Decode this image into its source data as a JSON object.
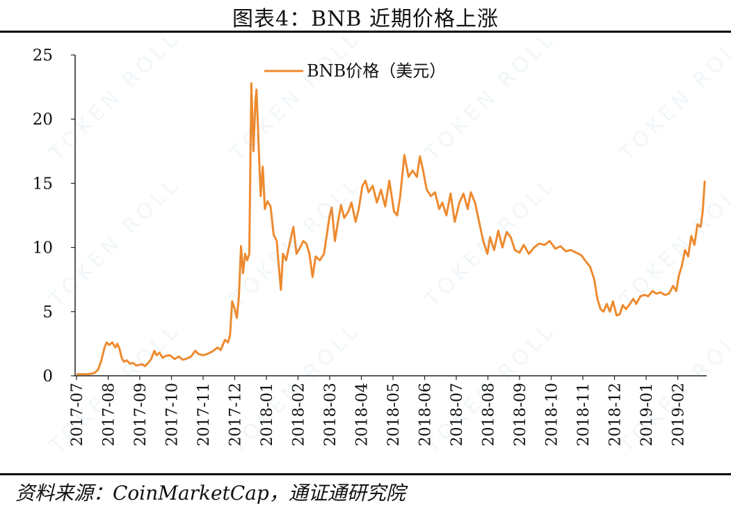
{
  "header": {
    "title": "图表4：BNB 近期价格上涨"
  },
  "footer": {
    "source": "资料来源：CoinMarketCap，通证通研究院"
  },
  "watermark": {
    "text": "TOKEN ROLL"
  },
  "chart_data": {
    "type": "line",
    "title": "",
    "xlabel": "",
    "ylabel": "",
    "ylim": [
      0,
      25
    ],
    "yticks": [
      0,
      5,
      10,
      15,
      20,
      25
    ],
    "categories": [
      "2017-07",
      "2017-08",
      "2017-09",
      "2017-10",
      "2017-11",
      "2017-12",
      "2018-01",
      "2018-02",
      "2018-03",
      "2018-04",
      "2018-05",
      "2018-06",
      "2018-07",
      "2018-08",
      "2018-09",
      "2018-10",
      "2018-11",
      "2018-12",
      "2019-01",
      "2019-02"
    ],
    "grid": false,
    "legend_position": "top-center",
    "series": [
      {
        "name": "BNB价格（美元）",
        "color": "#ED8A2F",
        "points": [
          [
            "2017-07-01",
            0.12
          ],
          [
            "2017-07-07",
            0.12
          ],
          [
            "2017-07-12",
            0.13
          ],
          [
            "2017-07-18",
            0.2
          ],
          [
            "2017-07-22",
            0.5
          ],
          [
            "2017-07-25",
            1.2
          ],
          [
            "2017-07-28",
            2.2
          ],
          [
            "2017-07-30",
            2.6
          ],
          [
            "2017-08-02",
            2.4
          ],
          [
            "2017-08-05",
            2.6
          ],
          [
            "2017-08-08",
            2.2
          ],
          [
            "2017-08-10",
            2.5
          ],
          [
            "2017-08-12",
            2.1
          ],
          [
            "2017-08-14",
            1.4
          ],
          [
            "2017-08-16",
            1.1
          ],
          [
            "2017-08-19",
            1.2
          ],
          [
            "2017-08-22",
            0.95
          ],
          [
            "2017-08-25",
            1.0
          ],
          [
            "2017-08-28",
            0.8
          ],
          [
            "2017-08-31",
            0.85
          ],
          [
            "2017-09-03",
            0.9
          ],
          [
            "2017-09-06",
            0.75
          ],
          [
            "2017-09-09",
            1.0
          ],
          [
            "2017-09-12",
            1.3
          ],
          [
            "2017-09-15",
            1.95
          ],
          [
            "2017-09-17",
            1.6
          ],
          [
            "2017-09-20",
            1.8
          ],
          [
            "2017-09-23",
            1.4
          ],
          [
            "2017-09-26",
            1.55
          ],
          [
            "2017-09-30",
            1.6
          ],
          [
            "2017-10-04",
            1.3
          ],
          [
            "2017-10-08",
            1.5
          ],
          [
            "2017-10-12",
            1.25
          ],
          [
            "2017-10-16",
            1.35
          ],
          [
            "2017-10-20",
            1.5
          ],
          [
            "2017-10-24",
            1.95
          ],
          [
            "2017-10-27",
            1.7
          ],
          [
            "2017-11-01",
            1.6
          ],
          [
            "2017-11-05",
            1.7
          ],
          [
            "2017-11-10",
            1.9
          ],
          [
            "2017-11-15",
            2.2
          ],
          [
            "2017-11-18",
            2.0
          ],
          [
            "2017-11-22",
            2.8
          ],
          [
            "2017-11-25",
            2.6
          ],
          [
            "2017-11-27",
            3.2
          ],
          [
            "2017-11-29",
            5.8
          ],
          [
            "2017-12-01",
            5.2
          ],
          [
            "2017-12-03",
            4.5
          ],
          [
            "2017-12-05",
            6.2
          ],
          [
            "2017-12-07",
            10.1
          ],
          [
            "2017-12-09",
            8.0
          ],
          [
            "2017-12-11",
            9.5
          ],
          [
            "2017-12-13",
            9.0
          ],
          [
            "2017-12-15",
            9.5
          ],
          [
            "2017-12-17",
            22.8
          ],
          [
            "2017-12-19",
            17.5
          ],
          [
            "2017-12-21",
            21.5
          ],
          [
            "2017-12-22",
            22.3
          ],
          [
            "2017-12-24",
            18.0
          ],
          [
            "2017-12-26",
            14.0
          ],
          [
            "2017-12-28",
            16.3
          ],
          [
            "2017-12-30",
            13.0
          ],
          [
            "2018-01-02",
            13.6
          ],
          [
            "2018-01-05",
            13.2
          ],
          [
            "2018-01-08",
            11.0
          ],
          [
            "2018-01-11",
            10.5
          ],
          [
            "2018-01-13",
            8.5
          ],
          [
            "2018-01-15",
            6.7
          ],
          [
            "2018-01-17",
            9.5
          ],
          [
            "2018-01-20",
            9.0
          ],
          [
            "2018-01-24",
            10.5
          ],
          [
            "2018-01-27",
            11.6
          ],
          [
            "2018-01-30",
            9.5
          ],
          [
            "2018-02-03",
            10.0
          ],
          [
            "2018-02-06",
            10.5
          ],
          [
            "2018-02-09",
            10.3
          ],
          [
            "2018-02-12",
            9.5
          ],
          [
            "2018-02-15",
            7.7
          ],
          [
            "2018-02-18",
            9.3
          ],
          [
            "2018-02-22",
            9.0
          ],
          [
            "2018-02-26",
            9.5
          ],
          [
            "2018-03-01",
            12.5
          ],
          [
            "2018-03-03",
            13.1
          ],
          [
            "2018-03-06",
            10.5
          ],
          [
            "2018-03-09",
            12.0
          ],
          [
            "2018-03-12",
            13.3
          ],
          [
            "2018-03-15",
            12.3
          ],
          [
            "2018-03-19",
            12.8
          ],
          [
            "2018-03-22",
            13.5
          ],
          [
            "2018-03-26",
            12.0
          ],
          [
            "2018-03-29",
            13.0
          ],
          [
            "2018-04-02",
            14.8
          ],
          [
            "2018-04-05",
            15.2
          ],
          [
            "2018-04-08",
            14.3
          ],
          [
            "2018-04-12",
            14.8
          ],
          [
            "2018-04-16",
            13.5
          ],
          [
            "2018-04-20",
            14.5
          ],
          [
            "2018-04-24",
            13.2
          ],
          [
            "2018-04-28",
            15.2
          ],
          [
            "2018-05-02",
            12.8
          ],
          [
            "2018-05-05",
            12.5
          ],
          [
            "2018-05-08",
            14.0
          ],
          [
            "2018-05-12",
            17.2
          ],
          [
            "2018-05-16",
            15.5
          ],
          [
            "2018-05-20",
            16.0
          ],
          [
            "2018-05-24",
            15.5
          ],
          [
            "2018-05-27",
            17.1
          ],
          [
            "2018-05-30",
            16.0
          ],
          [
            "2018-06-03",
            14.5
          ],
          [
            "2018-06-07",
            14.0
          ],
          [
            "2018-06-11",
            14.3
          ],
          [
            "2018-06-15",
            13.0
          ],
          [
            "2018-06-18",
            13.5
          ],
          [
            "2018-06-22",
            12.5
          ],
          [
            "2018-06-26",
            14.2
          ],
          [
            "2018-06-30",
            12.0
          ],
          [
            "2018-07-04",
            13.5
          ],
          [
            "2018-07-08",
            14.2
          ],
          [
            "2018-07-12",
            13.0
          ],
          [
            "2018-07-15",
            14.3
          ],
          [
            "2018-07-19",
            13.5
          ],
          [
            "2018-07-23",
            12.0
          ],
          [
            "2018-07-27",
            10.5
          ],
          [
            "2018-07-31",
            9.5
          ],
          [
            "2018-08-03",
            10.8
          ],
          [
            "2018-08-07",
            9.8
          ],
          [
            "2018-08-11",
            11.3
          ],
          [
            "2018-08-15",
            10.0
          ],
          [
            "2018-08-19",
            11.2
          ],
          [
            "2018-08-23",
            10.8
          ],
          [
            "2018-08-27",
            9.8
          ],
          [
            "2018-09-01",
            9.6
          ],
          [
            "2018-09-05",
            10.2
          ],
          [
            "2018-09-10",
            9.5
          ],
          [
            "2018-09-15",
            10.0
          ],
          [
            "2018-09-20",
            10.3
          ],
          [
            "2018-09-25",
            10.2
          ],
          [
            "2018-09-30",
            10.5
          ],
          [
            "2018-10-05",
            9.9
          ],
          [
            "2018-10-10",
            10.1
          ],
          [
            "2018-10-15",
            9.7
          ],
          [
            "2018-10-20",
            9.8
          ],
          [
            "2018-10-25",
            9.6
          ],
          [
            "2018-10-30",
            9.4
          ],
          [
            "2018-11-03",
            9.0
          ],
          [
            "2018-11-08",
            8.5
          ],
          [
            "2018-11-12",
            7.5
          ],
          [
            "2018-11-15",
            6.0
          ],
          [
            "2018-11-18",
            5.2
          ],
          [
            "2018-11-21",
            5.0
          ],
          [
            "2018-11-24",
            5.6
          ],
          [
            "2018-11-27",
            5.0
          ],
          [
            "2018-11-30",
            5.8
          ],
          [
            "2018-12-03",
            4.7
          ],
          [
            "2018-12-06",
            4.8
          ],
          [
            "2018-12-09",
            5.5
          ],
          [
            "2018-12-12",
            5.2
          ],
          [
            "2018-12-15",
            5.5
          ],
          [
            "2018-12-19",
            6.0
          ],
          [
            "2018-12-22",
            5.6
          ],
          [
            "2018-12-26",
            6.2
          ],
          [
            "2018-12-30",
            6.3
          ],
          [
            "2019-01-03",
            6.2
          ],
          [
            "2019-01-07",
            6.6
          ],
          [
            "2019-01-11",
            6.4
          ],
          [
            "2019-01-15",
            6.5
          ],
          [
            "2019-01-19",
            6.3
          ],
          [
            "2019-01-23",
            6.4
          ],
          [
            "2019-01-27",
            7.0
          ],
          [
            "2019-01-30",
            6.6
          ],
          [
            "2019-02-02",
            7.8
          ],
          [
            "2019-02-05",
            8.6
          ],
          [
            "2019-02-08",
            9.8
          ],
          [
            "2019-02-11",
            9.3
          ],
          [
            "2019-02-14",
            10.9
          ],
          [
            "2019-02-17",
            10.2
          ],
          [
            "2019-02-20",
            11.8
          ],
          [
            "2019-02-23",
            11.6
          ],
          [
            "2019-02-25",
            12.8
          ],
          [
            "2019-02-27",
            15.2
          ]
        ]
      }
    ]
  }
}
